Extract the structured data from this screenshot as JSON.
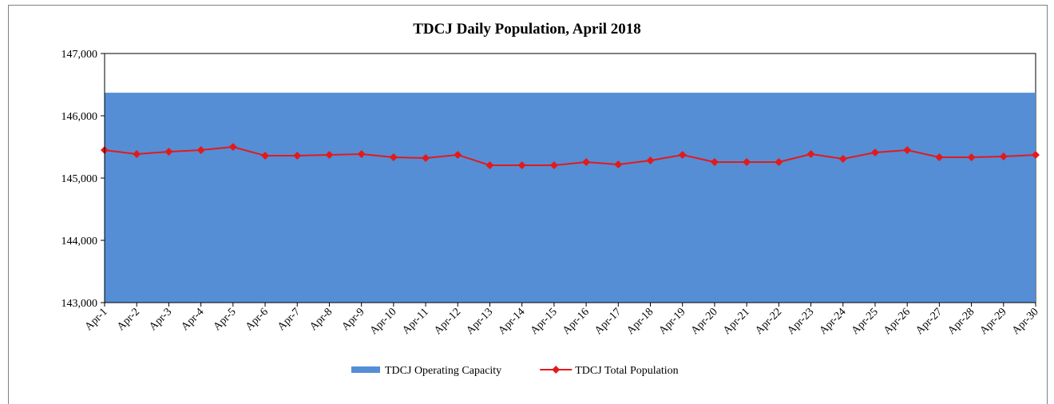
{
  "chart_data": {
    "type": "line",
    "title": "TDCJ Daily Population, April 2018",
    "categories": [
      "Apr-1",
      "Apr-2",
      "Apr-3",
      "Apr-4",
      "Apr-5",
      "Apr-6",
      "Apr-7",
      "Apr-8",
      "Apr-9",
      "Apr-10",
      "Apr-11",
      "Apr-12",
      "Apr-13",
      "Apr-14",
      "Apr-15",
      "Apr-16",
      "Apr-17",
      "Apr-18",
      "Apr-19",
      "Apr-20",
      "Apr-21",
      "Apr-22",
      "Apr-23",
      "Apr-24",
      "Apr-25",
      "Apr-26",
      "Apr-27",
      "Apr-28",
      "Apr-29",
      "Apr-30"
    ],
    "series": [
      {
        "name": "TDCJ Operating Capacity",
        "kind": "area",
        "color": "#558ed5",
        "values": [
          146370,
          146370,
          146370,
          146370,
          146370,
          146370,
          146370,
          146370,
          146370,
          146370,
          146370,
          146370,
          146370,
          146370,
          146370,
          146370,
          146370,
          146370,
          146370,
          146370,
          146370,
          146370,
          146370,
          146370,
          146370,
          146370,
          146370,
          146370,
          146370,
          146370
        ]
      },
      {
        "name": "TDCJ Total Population",
        "kind": "line",
        "color": "#e31a1c",
        "values": [
          145449,
          145385,
          145423,
          145449,
          145500,
          145359,
          145359,
          145372,
          145385,
          145333,
          145321,
          145372,
          145205,
          145205,
          145205,
          145256,
          145218,
          145282,
          145372,
          145256,
          145256,
          145256,
          145385,
          145308,
          145410,
          145449,
          145333,
          145333,
          145346,
          145372
        ]
      }
    ],
    "ylim": [
      143000,
      147000
    ],
    "yticks": [
      {
        "value": 143000,
        "label": "143,000"
      },
      {
        "value": 144000,
        "label": "144,000"
      },
      {
        "value": 145000,
        "label": "145,000"
      },
      {
        "value": 146000,
        "label": "146,000"
      },
      {
        "value": 147000,
        "label": "147,000"
      }
    ],
    "legend": "bottom"
  }
}
